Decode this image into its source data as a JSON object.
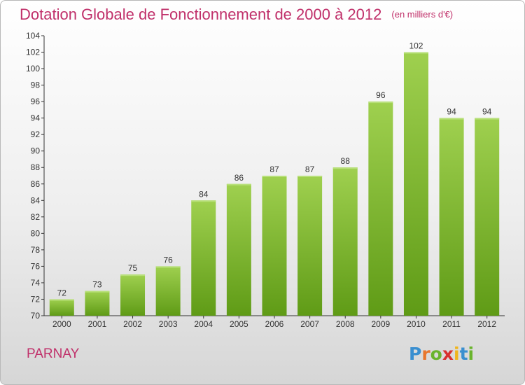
{
  "title": "Dotation Globale de Fonctionnement de 2000 à 2012",
  "subtitle": "(en milliers d'€)",
  "commune": "PARNAY",
  "logo": [
    "P",
    "r",
    "o",
    "x",
    "i",
    "t",
    "i"
  ],
  "colors": {
    "bar_top": "#9fd04f",
    "bar_bottom": "#5f9b16",
    "title": "#c0306a",
    "axis": "#333333"
  },
  "chart_data": {
    "type": "bar",
    "title": "Dotation Globale de Fonctionnement de 2000 à 2012",
    "subtitle": "(en milliers d'€)",
    "xlabel": "",
    "ylabel": "",
    "categories": [
      "2000",
      "2001",
      "2002",
      "2003",
      "2004",
      "2005",
      "2006",
      "2007",
      "2008",
      "2009",
      "2010",
      "2011",
      "2012"
    ],
    "values": [
      72,
      73,
      75,
      76,
      84,
      86,
      87,
      87,
      88,
      96,
      102,
      94,
      94
    ],
    "ylim": [
      70,
      104
    ],
    "yticks": [
      70,
      72,
      74,
      76,
      78,
      80,
      82,
      84,
      86,
      88,
      90,
      92,
      94,
      96,
      98,
      100,
      102,
      104
    ],
    "grid": false,
    "legend": "none"
  }
}
